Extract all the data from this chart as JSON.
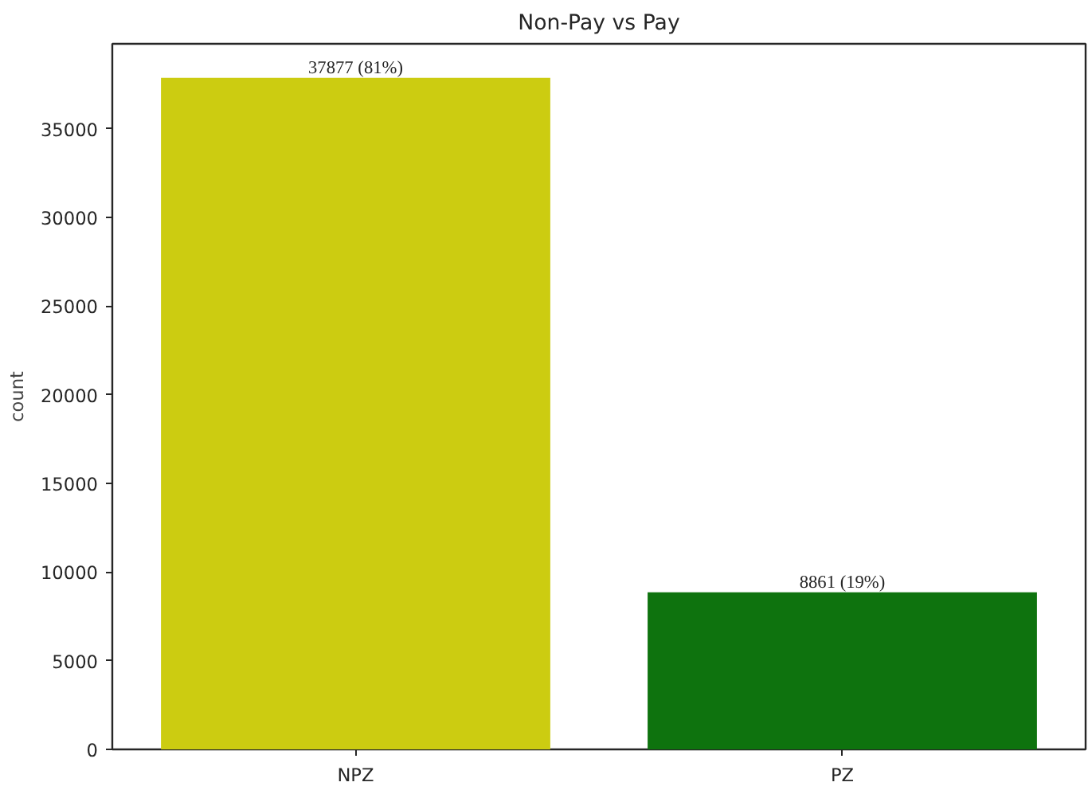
{
  "chart_data": {
    "type": "bar",
    "title": "Non-Pay vs Pay",
    "ylabel": "count",
    "categories": [
      "NPZ",
      "PZ"
    ],
    "values": [
      37877,
      8861
    ],
    "colors": [
      "#cccc11",
      "#0e730e"
    ],
    "value_labels": [
      "37877 (81%)",
      "8861 (19%)"
    ],
    "ylim": [
      0,
      39800
    ],
    "yticks": [
      0,
      5000,
      10000,
      15000,
      20000,
      25000,
      30000,
      35000
    ],
    "grid": false
  }
}
